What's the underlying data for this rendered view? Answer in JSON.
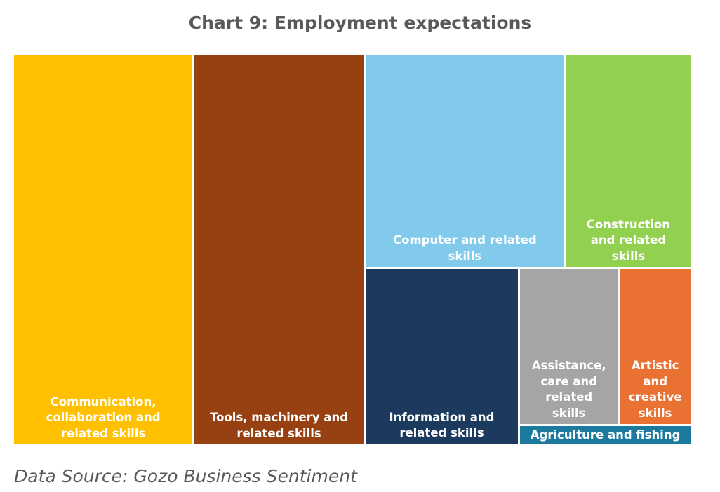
{
  "chart_data": {
    "type": "treemap",
    "title": "Chart 9: Employment expectations",
    "categories": [
      "Communication, collaboration and related skills",
      "Tools, machinery and related skills",
      "Computer and related skills",
      "Construction and related skills",
      "Information and related skills",
      "Assistance, care and related skills",
      "Artistic and creative skills",
      "Agriculture and fishing"
    ],
    "values": [
      26.6,
      25.2,
      16.2,
      10.2,
      10.3,
      5.9,
      4.3,
      1.3
    ],
    "colors": [
      "#ffc000",
      "#974011",
      "#82caeb",
      "#92d050",
      "#1b3a5e",
      "#a5a5a5",
      "#e97132",
      "#1b7a9e"
    ],
    "source": "Data Source: Gozo Business Sentiment"
  }
}
